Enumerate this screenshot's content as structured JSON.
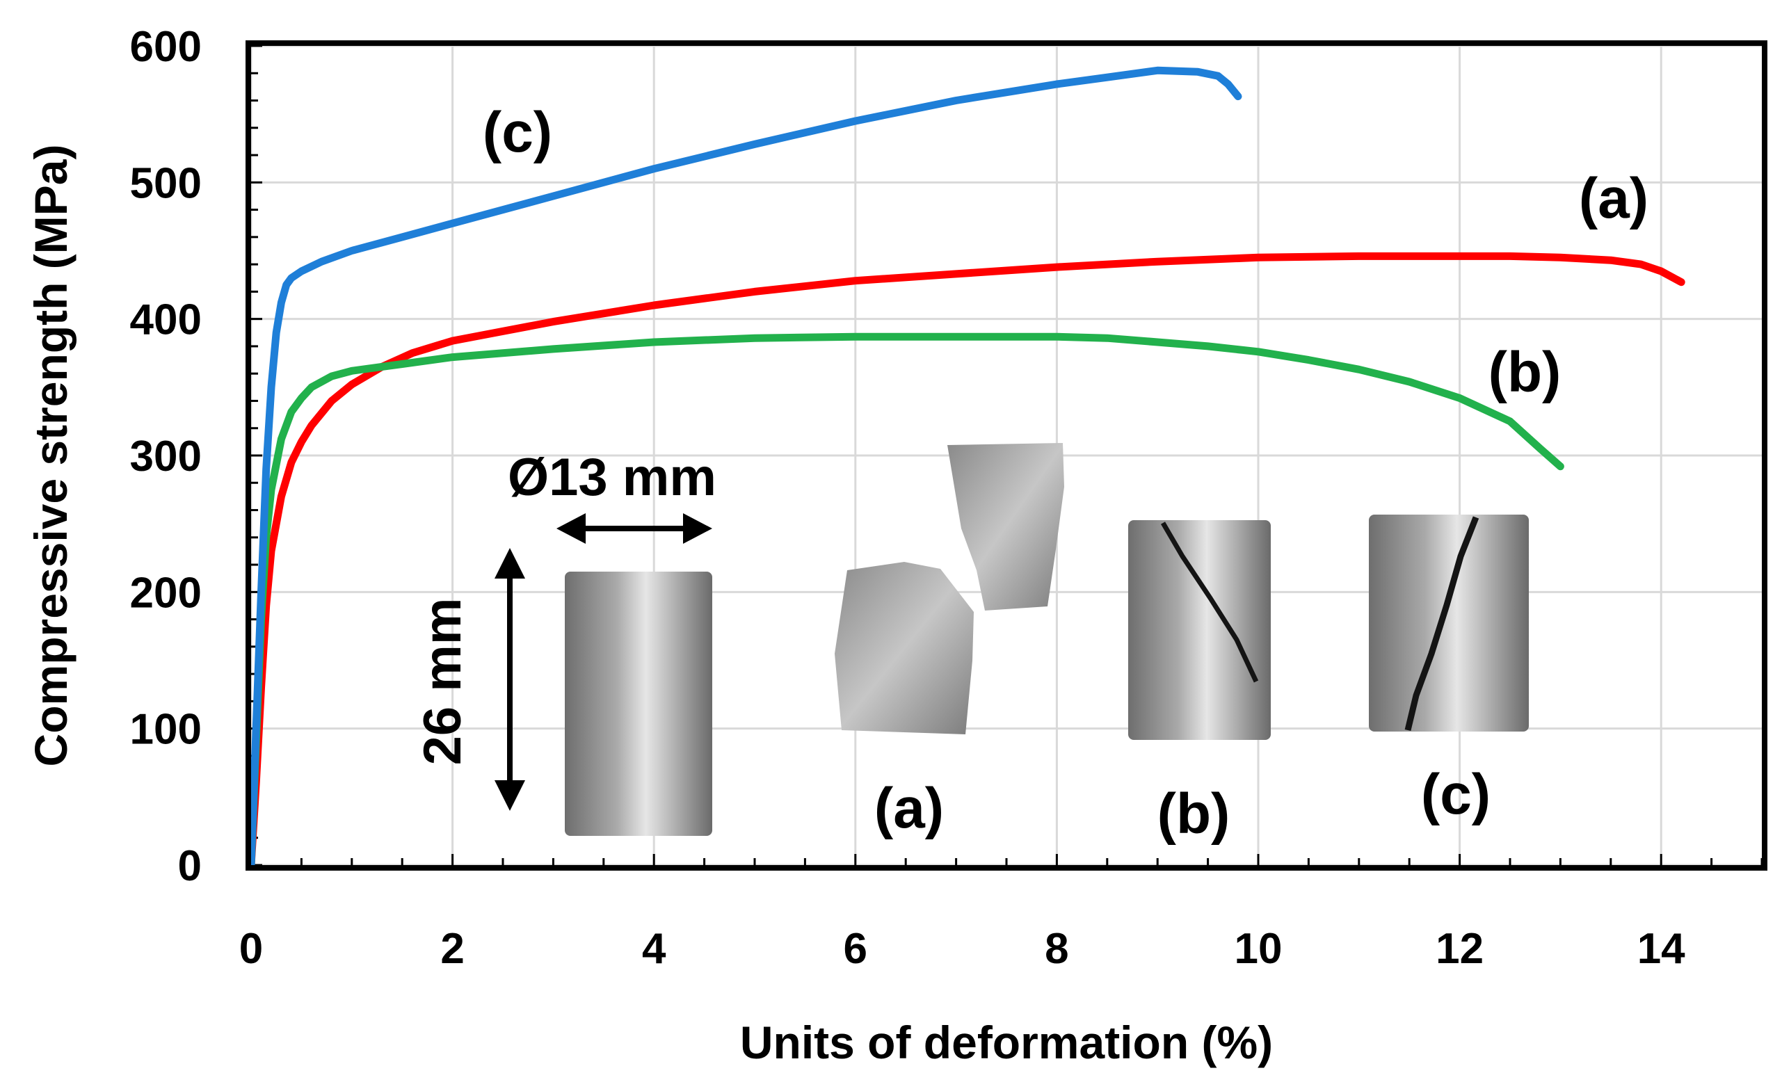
{
  "chart_data": {
    "type": "line",
    "xlabel": "Units of deformation (%)",
    "ylabel": "Compressive strength (MPa)",
    "xlim": [
      0,
      15
    ],
    "ylim": [
      0,
      600
    ],
    "x_ticks": [
      "0",
      "2",
      "4",
      "6",
      "8",
      "10",
      "12",
      "14"
    ],
    "y_ticks": [
      "0",
      "100",
      "200",
      "300",
      "400",
      "500",
      "600"
    ],
    "grid": true,
    "series": [
      {
        "name": "(a)",
        "color": "#ff0000",
        "x": [
          0.0,
          0.05,
          0.1,
          0.15,
          0.2,
          0.3,
          0.4,
          0.5,
          0.6,
          0.8,
          1.0,
          1.3,
          1.6,
          2.0,
          3.0,
          4.0,
          5.0,
          6.0,
          7.0,
          8.0,
          9.0,
          10.0,
          11.0,
          12.0,
          12.5,
          13.0,
          13.5,
          13.8,
          14.0,
          14.2
        ],
        "y": [
          0,
          60,
          130,
          190,
          230,
          270,
          295,
          310,
          322,
          340,
          352,
          365,
          375,
          384,
          398,
          410,
          420,
          428,
          433,
          438,
          442,
          445,
          446,
          446,
          446,
          445,
          443,
          440,
          435,
          427
        ]
      },
      {
        "name": "(b)",
        "color": "#22b14c",
        "x": [
          0.0,
          0.05,
          0.1,
          0.15,
          0.2,
          0.3,
          0.4,
          0.5,
          0.6,
          0.8,
          1.0,
          1.5,
          2.0,
          3.0,
          4.0,
          5.0,
          6.0,
          7.0,
          8.0,
          8.5,
          9.0,
          9.5,
          10.0,
          10.5,
          11.0,
          11.5,
          12.0,
          12.5,
          12.8,
          13.0
        ],
        "y": [
          0,
          90,
          180,
          240,
          275,
          312,
          332,
          342,
          350,
          358,
          362,
          367,
          372,
          378,
          383,
          386,
          387,
          387,
          387,
          386,
          383,
          380,
          376,
          370,
          363,
          354,
          342,
          325,
          305,
          292
        ]
      },
      {
        "name": "(c)",
        "color": "#1f7fd8",
        "x": [
          0.0,
          0.05,
          0.1,
          0.15,
          0.2,
          0.25,
          0.3,
          0.35,
          0.4,
          0.5,
          0.7,
          1.0,
          1.5,
          2.0,
          3.0,
          4.0,
          5.0,
          6.0,
          7.0,
          8.0,
          8.5,
          9.0,
          9.4,
          9.6,
          9.7,
          9.8
        ],
        "y": [
          0,
          100,
          200,
          290,
          350,
          390,
          412,
          425,
          430,
          435,
          442,
          450,
          460,
          470,
          490,
          510,
          528,
          545,
          560,
          572,
          577,
          582,
          581,
          578,
          572,
          563
        ]
      }
    ],
    "annotations": [
      "(a)",
      "(b)",
      "(c)",
      "(a)",
      "(b)",
      "(c)",
      "Ø13 mm",
      "26 mm"
    ]
  }
}
